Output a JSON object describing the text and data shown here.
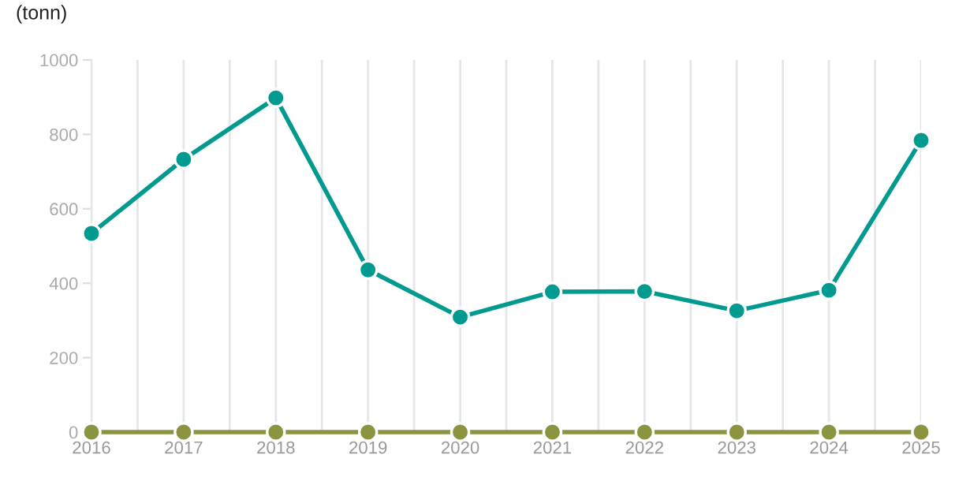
{
  "chart_data": {
    "type": "line",
    "ylabel": "(tonn)",
    "x": [
      2016,
      2017,
      2018,
      2019,
      2020,
      2021,
      2022,
      2023,
      2024,
      2025
    ],
    "series": [
      {
        "color": "#009a8e",
        "values": [
          534,
          733,
          898,
          436,
          309,
          377,
          378,
          326,
          381,
          784
        ]
      },
      {
        "color": "#8c9440",
        "values": [
          0,
          0,
          0,
          0,
          0,
          0,
          0,
          0,
          0,
          0
        ]
      }
    ],
    "xlim": [
      2016,
      2025
    ],
    "ylim": [
      0,
      1000
    ],
    "yticks": [
      0,
      200,
      400,
      600,
      800,
      1000
    ],
    "xticks": [
      2016,
      {
        "value": 2016.5,
        "label": null
      },
      2017,
      {
        "value": 2017.5,
        "label": null
      },
      2018,
      {
        "value": 2018.5,
        "label": null
      },
      2019,
      {
        "value": 2019.5,
        "label": null
      },
      2020,
      {
        "value": 2020.5,
        "label": null
      },
      2021,
      {
        "value": 2021.5,
        "label": null
      },
      2022,
      {
        "value": 2022.5,
        "label": null
      },
      2023,
      {
        "value": 2023.5,
        "label": null
      },
      2024,
      {
        "value": 2024.5,
        "label": null
      },
      2025
    ],
    "grid": "x",
    "marker": "circle",
    "line_style": "solid",
    "legend": false
  }
}
